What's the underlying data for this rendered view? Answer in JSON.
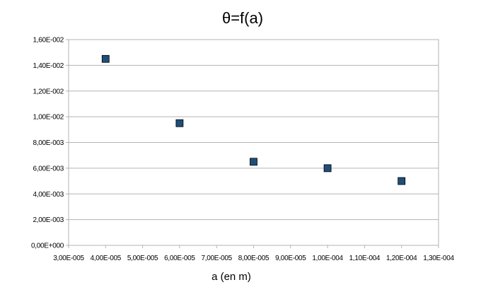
{
  "chart_data": {
    "type": "scatter",
    "title": "θ=f(a)",
    "xlabel": "a (en m)",
    "ylabel": "",
    "xlim": [
      3e-05,
      0.00013
    ],
    "ylim": [
      0,
      0.016
    ],
    "x_ticks": [
      3e-05,
      4e-05,
      5e-05,
      6e-05,
      7e-05,
      8e-05,
      9e-05,
      0.0001,
      0.00011,
      0.00012,
      0.00013
    ],
    "x_tick_labels": [
      "3,00E-005",
      "4,00E-005",
      "5,00E-005",
      "6,00E-005",
      "7,00E-005",
      "8,00E-005",
      "9,00E-005",
      "1,00E-004",
      "1,10E-004",
      "1,20E-004",
      "1,30E-004"
    ],
    "y_ticks": [
      0,
      0.002,
      0.004,
      0.006,
      0.008,
      0.01,
      0.012,
      0.014,
      0.016
    ],
    "y_tick_labels": [
      "0,00E+000",
      "2,00E-003",
      "4,00E-003",
      "6,00E-003",
      "8,00E-003",
      "1,00E-002",
      "1,20E-002",
      "1,40E-002",
      "1,60E-002"
    ],
    "grid": "horizontal",
    "marker_color": "#1f4e79",
    "series": [
      {
        "x": [
          4e-05,
          6e-05,
          8e-05,
          0.0001,
          0.00012
        ],
        "y": [
          0.0145,
          0.0095,
          0.0065,
          0.006,
          0.005
        ]
      }
    ]
  }
}
